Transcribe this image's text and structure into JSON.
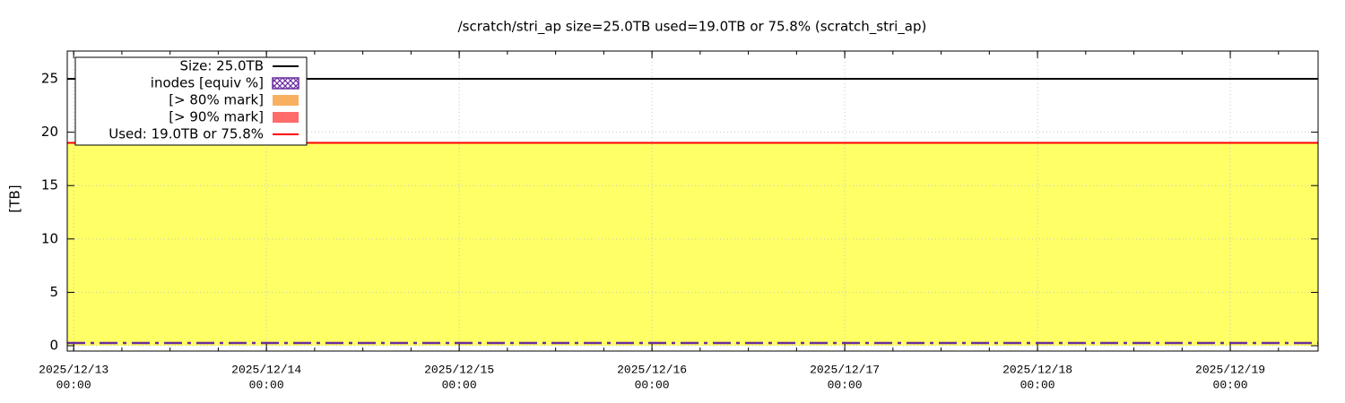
{
  "chart_data": {
    "type": "area",
    "title": "/scratch/stri_ap size=25.0TB used=19.0TB or 75.8% (scratch_stri_ap)",
    "y_label": "[TB]",
    "x": [
      "2025-12-12T23:12",
      "2025-12-19T10:56"
    ],
    "xlim": [
      "2025-12-12T23:12",
      "2025-12-19T10:56"
    ],
    "xticks": [
      {
        "value": "2025-12-13T00:00",
        "label": [
          "2025/12/13",
          "00:00"
        ]
      },
      {
        "value": "2025-12-14T00:00",
        "label": [
          "2025/12/14",
          "00:00"
        ]
      },
      {
        "value": "2025-12-15T00:00",
        "label": [
          "2025/12/15",
          "00:00"
        ]
      },
      {
        "value": "2025-12-16T00:00",
        "label": [
          "2025/12/16",
          "00:00"
        ]
      },
      {
        "value": "2025-12-17T00:00",
        "label": [
          "2025/12/17",
          "00:00"
        ]
      },
      {
        "value": "2025-12-18T00:00",
        "label": [
          "2025/12/18",
          "00:00"
        ]
      },
      {
        "value": "2025-12-19T00:00",
        "label": [
          "2025/12/19",
          "00:00"
        ]
      }
    ],
    "minor_xticks_per_interval": 4,
    "ylim": [
      -0.5,
      27.6
    ],
    "yticks": [
      0,
      5,
      10,
      15,
      20,
      25
    ],
    "grid": true,
    "legend": "top-left",
    "series": [
      {
        "name": "Size: 25.0TB",
        "color": "#000000",
        "style": "line",
        "values": [
          25,
          25
        ]
      },
      {
        "name": "inodes [equiv %]",
        "color": "#6a2ca0",
        "style": "dashdot",
        "values": [
          0.25,
          0.25
        ]
      },
      {
        "name": "[> 80% mark]",
        "color": "#f8b060",
        "style": "area",
        "values": [
          null,
          null
        ]
      },
      {
        "name": "[> 90% mark]",
        "color": "#ff6b6b",
        "style": "area",
        "values": [
          null,
          null
        ]
      },
      {
        "name": "Used: 19.0TB or 75.8%",
        "color": "#ff0000",
        "fill": "#ffff66",
        "style": "area-line",
        "values": [
          19,
          19
        ]
      }
    ]
  }
}
